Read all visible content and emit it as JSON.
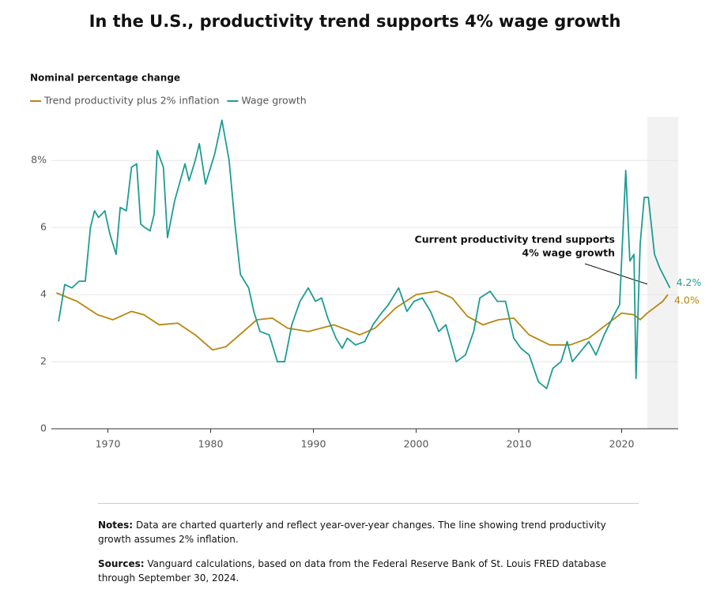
{
  "chart_data": {
    "type": "line",
    "title": "In the U.S., productivity trend supports 4% wage growth",
    "y_label": "Nominal percentage change",
    "annotation": [
      "Current productivity trend supports",
      "4% wage growth"
    ],
    "xlim": [
      1964.5,
      2025.5
    ],
    "xticks": [
      1970,
      1980,
      1990,
      2000,
      2010,
      2020
    ],
    "ylim": [
      0,
      9.3
    ],
    "yticks": [
      0,
      2,
      4,
      6,
      {
        "value": 8,
        "label": "8%"
      }
    ],
    "grid": true,
    "shaded_region": [
      2022.5,
      2025.5
    ],
    "series": [
      {
        "name": "Trend productivity plus 2% inflation",
        "color": "#b8860f",
        "x": [
          1965,
          1967,
          1969,
          1970.5,
          1972.3,
          1973.5,
          1975,
          1976.8,
          1978.5,
          1980.2,
          1981.5,
          1983,
          1984.5,
          1986,
          1987.5,
          1989.5,
          1992,
          1994.5,
          1996,
          1998,
          2000,
          2002,
          2003.5,
          2005,
          2006.5,
          2008,
          2009.5,
          2011,
          2013,
          2015,
          2016.8,
          2018.5,
          2020,
          2021.2,
          2021.8,
          2022.5,
          2024,
          2024.5
        ],
        "values": [
          4.05,
          3.8,
          3.4,
          3.25,
          3.5,
          3.4,
          3.1,
          3.15,
          2.8,
          2.35,
          2.45,
          2.85,
          3.25,
          3.3,
          3.0,
          2.9,
          3.1,
          2.8,
          3.0,
          3.6,
          4.0,
          4.1,
          3.9,
          3.35,
          3.1,
          3.25,
          3.3,
          2.8,
          2.5,
          2.5,
          2.7,
          3.1,
          3.45,
          3.4,
          3.25,
          3.45,
          3.8,
          4.0
        ],
        "value_labels": [
          null,
          null,
          null,
          null,
          null,
          null,
          null,
          null,
          null,
          null,
          null,
          null,
          null,
          null,
          null,
          null,
          null,
          null,
          null,
          null,
          null,
          null,
          null,
          null,
          null,
          null,
          null,
          null,
          null,
          null,
          null,
          null,
          null,
          null,
          null,
          null,
          null,
          "4.0%"
        ]
      },
      {
        "name": "Wage growth",
        "color": "#1e9c94",
        "x": [
          1965.2,
          1965.8,
          1966.5,
          1967.2,
          1967.8,
          1968.3,
          1968.7,
          1969.1,
          1969.7,
          1970.2,
          1970.8,
          1971.2,
          1971.8,
          1972.3,
          1972.8,
          1973.2,
          1973.6,
          1974.1,
          1974.5,
          1974.8,
          1975.4,
          1975.8,
          1976.5,
          1977.5,
          1977.9,
          1978.5,
          1978.9,
          1979.5,
          1979.8,
          1980.4,
          1981.1,
          1981.8,
          1982.4,
          1982.9,
          1983.7,
          1984.2,
          1984.8,
          1985.7,
          1986.5,
          1987.2,
          1987.9,
          1988.7,
          1989.5,
          1990.2,
          1990.8,
          1991.4,
          1992.2,
          1992.8,
          1993.3,
          1994.1,
          1995.0,
          1995.8,
          1996.5,
          1997.3,
          1998.3,
          1999.1,
          1999.8,
          2000.6,
          2001.4,
          2002.2,
          2002.9,
          2003.9,
          2004.8,
          2005.6,
          2006.2,
          2007.2,
          2007.9,
          2008.7,
          2009.5,
          2010.2,
          2011.0,
          2011.9,
          2012.7,
          2013.3,
          2014.1,
          2014.7,
          2015.2,
          2016.0,
          2016.8,
          2017.5,
          2018.3,
          2019.1,
          2019.8,
          2020.4,
          2020.8,
          2021.2,
          2021.4,
          2021.8,
          2022.2,
          2022.6,
          2023.2,
          2023.7,
          2024.2,
          2024.7
        ],
        "values": [
          3.2,
          4.3,
          4.2,
          4.4,
          4.4,
          6.0,
          6.5,
          6.3,
          6.5,
          5.8,
          5.2,
          6.6,
          6.5,
          7.8,
          7.9,
          6.1,
          6.0,
          5.9,
          6.4,
          8.3,
          7.8,
          5.7,
          6.8,
          7.9,
          7.4,
          8.0,
          8.5,
          7.3,
          7.6,
          8.2,
          9.2,
          8.0,
          6.0,
          4.6,
          4.2,
          3.5,
          2.9,
          2.8,
          2.0,
          2.0,
          3.1,
          3.8,
          4.2,
          3.8,
          3.9,
          3.3,
          2.7,
          2.4,
          2.7,
          2.5,
          2.6,
          3.1,
          3.4,
          3.7,
          4.2,
          3.5,
          3.8,
          3.9,
          3.5,
          2.9,
          3.1,
          2.0,
          2.2,
          2.9,
          3.9,
          4.1,
          3.8,
          3.8,
          2.7,
          2.4,
          2.2,
          1.4,
          1.2,
          1.8,
          2.0,
          2.6,
          2.0,
          2.3,
          2.6,
          2.2,
          2.8,
          3.3,
          3.7,
          7.7,
          5.0,
          5.2,
          1.5,
          5.5,
          6.9,
          6.9,
          5.2,
          4.8,
          4.5,
          4.2
        ],
        "value_labels": [
          null,
          null,
          null,
          null,
          null,
          null,
          null,
          null,
          null,
          null,
          null,
          null,
          null,
          null,
          null,
          null,
          null,
          null,
          null,
          null,
          null,
          null,
          null,
          null,
          null,
          null,
          null,
          null,
          null,
          null,
          null,
          null,
          null,
          null,
          null,
          null,
          null,
          null,
          null,
          null,
          null,
          null,
          null,
          null,
          null,
          null,
          null,
          null,
          null,
          null,
          null,
          null,
          null,
          null,
          null,
          null,
          null,
          null,
          null,
          null,
          null,
          null,
          null,
          null,
          null,
          null,
          null,
          null,
          null,
          null,
          null,
          null,
          null,
          null,
          null,
          null,
          null,
          null,
          null,
          null,
          null,
          null,
          null,
          null,
          null,
          null,
          null,
          null,
          null,
          null,
          null,
          null,
          null,
          "4.2%"
        ]
      }
    ]
  },
  "notes": {
    "label": "Notes:",
    "text": "Data are charted quarterly and reflect year-over-year changes. The line showing trend productivity growth assumes 2% inflation."
  },
  "sources": {
    "label": "Sources:",
    "text": "Vanguard calculations, based on data from the Federal Reserve Bank of St. Louis FRED database through September 30, 2024."
  }
}
